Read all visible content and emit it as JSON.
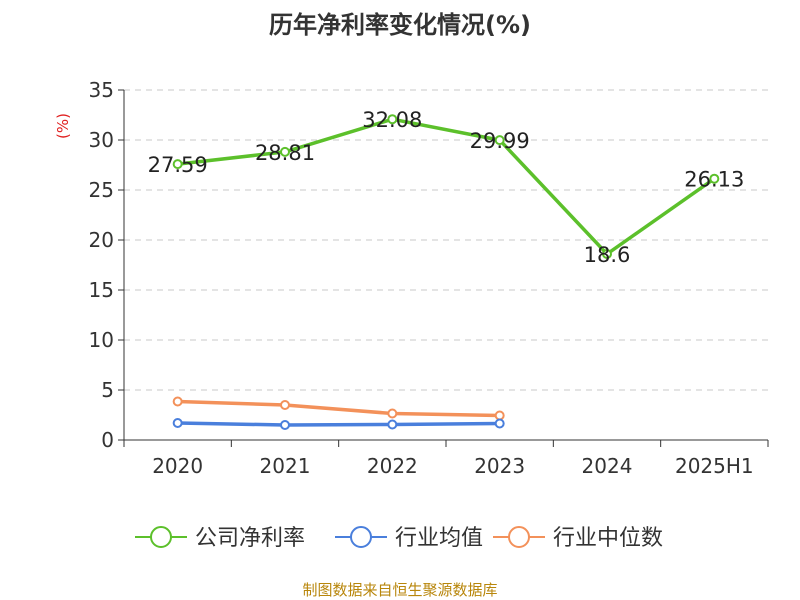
{
  "chart_data": {
    "type": "line",
    "title": "历年净利率变化情况(%)",
    "ylabel": "(%)",
    "ylim": [
      0,
      35
    ],
    "yticks": [
      0,
      5,
      10,
      15,
      20,
      25,
      30,
      35
    ],
    "categories": [
      "2020",
      "2021",
      "2022",
      "2023",
      "2024",
      "2025H1"
    ],
    "grid": true,
    "legend_position": "bottom",
    "series": [
      {
        "name": "公司净利率",
        "color": "#5cc02b",
        "values": [
          27.59,
          28.81,
          32.08,
          29.99,
          18.6,
          26.13
        ],
        "labels": [
          "27.59",
          "28.81",
          "32.08",
          "29.99",
          "18.6",
          "26.13"
        ],
        "show_labels": true
      },
      {
        "name": "行业均值",
        "color": "#4a7fdc",
        "values": [
          1.7,
          1.5,
          1.55,
          1.65,
          null,
          null
        ],
        "show_labels": false
      },
      {
        "name": "行业中位数",
        "color": "#f3915a",
        "values": [
          3.85,
          3.5,
          2.65,
          2.45,
          null,
          null
        ],
        "show_labels": false
      }
    ]
  },
  "footer": {
    "source": "制图数据来自恒生聚源数据库"
  }
}
